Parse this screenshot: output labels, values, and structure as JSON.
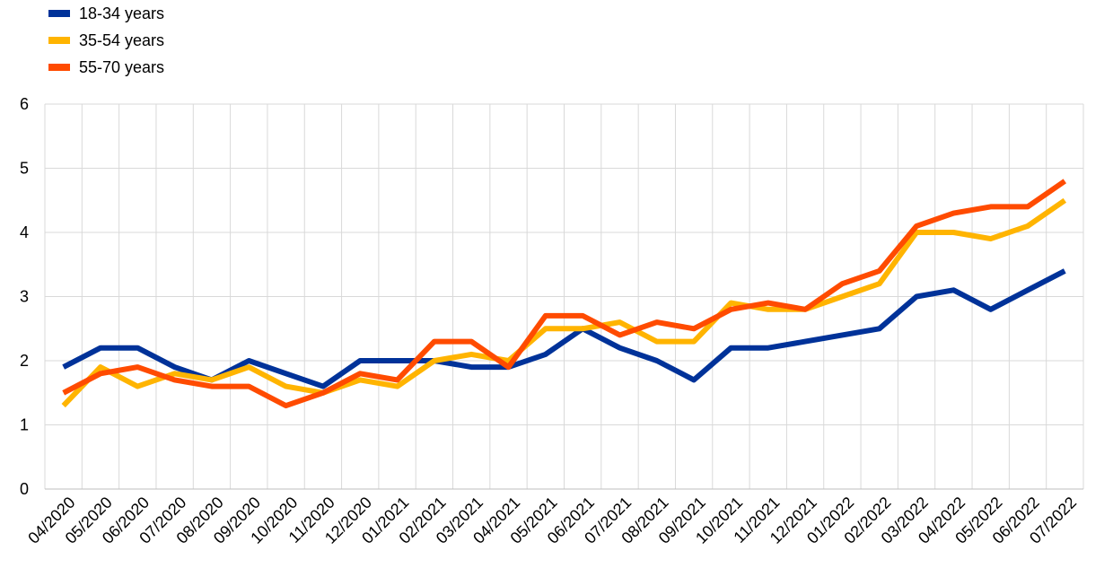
{
  "chart_data": {
    "type": "line",
    "categories": [
      "04/2020",
      "05/2020",
      "06/2020",
      "07/2020",
      "08/2020",
      "09/2020",
      "10/2020",
      "11/2020",
      "12/2020",
      "01/2021",
      "02/2021",
      "03/2021",
      "04/2021",
      "05/2021",
      "06/2021",
      "07/2021",
      "08/2021",
      "09/2021",
      "10/2021",
      "11/2021",
      "12/2021",
      "01/2022",
      "02/2022",
      "03/2022",
      "04/2022",
      "05/2022",
      "06/2022",
      "07/2022"
    ],
    "series": [
      {
        "name": "18-34 years",
        "color": "#003299",
        "values": [
          1.9,
          2.2,
          2.2,
          1.9,
          1.7,
          2.0,
          1.8,
          1.6,
          2.0,
          2.0,
          2.0,
          1.9,
          1.9,
          2.1,
          2.5,
          2.2,
          2.0,
          1.7,
          2.2,
          2.2,
          2.3,
          2.4,
          2.5,
          3.0,
          3.1,
          2.8,
          3.1,
          3.4
        ]
      },
      {
        "name": "35-54 years",
        "color": "#FFB400",
        "values": [
          1.3,
          1.9,
          1.6,
          1.8,
          1.7,
          1.9,
          1.6,
          1.5,
          1.7,
          1.6,
          2.0,
          2.1,
          2.0,
          2.5,
          2.5,
          2.6,
          2.3,
          2.3,
          2.9,
          2.8,
          2.8,
          3.0,
          3.2,
          4.0,
          4.0,
          3.9,
          4.1,
          4.5
        ]
      },
      {
        "name": "55-70 years",
        "color": "#FF4B00",
        "values": [
          1.5,
          1.8,
          1.9,
          1.7,
          1.6,
          1.6,
          1.3,
          1.5,
          1.8,
          1.7,
          2.3,
          2.3,
          1.9,
          2.7,
          2.7,
          2.4,
          2.6,
          2.5,
          2.8,
          2.9,
          2.8,
          3.2,
          3.4,
          4.1,
          4.3,
          4.4,
          4.4,
          4.8
        ]
      }
    ],
    "yticks": [
      "0",
      "1",
      "2",
      "3",
      "4",
      "5",
      "6"
    ],
    "ylim": [
      0,
      6
    ],
    "grid": true,
    "legend_position": "top-left"
  }
}
